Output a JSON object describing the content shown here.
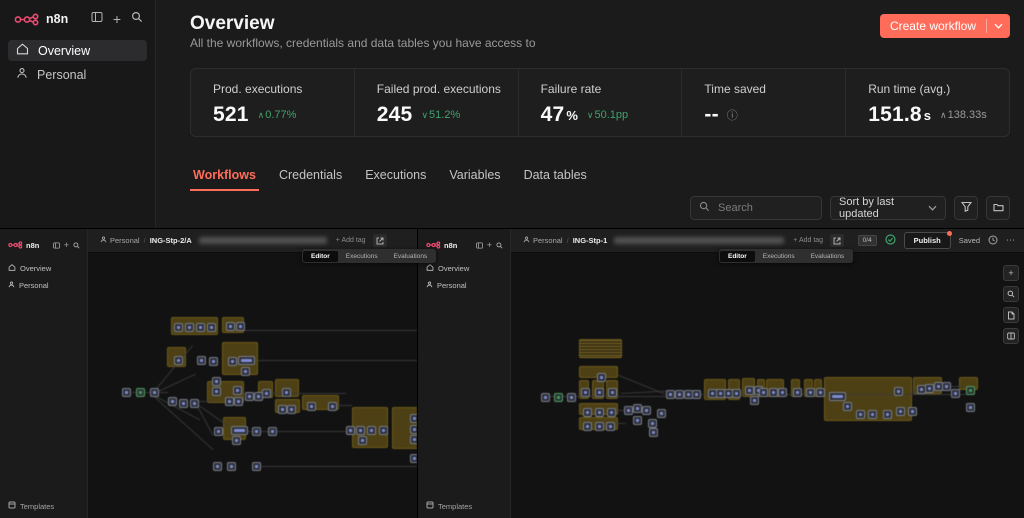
{
  "brand": {
    "name": "n8n"
  },
  "colors": {
    "accent": "#ff6d5a",
    "logo_pink": "#ea4b71",
    "positive_green": "#3fa36b",
    "sticky_olive": "#7d6616"
  },
  "icons": {
    "plus": "+",
    "dots": "⋯",
    "info": "ⓘ"
  },
  "main_sidebar": {
    "items": [
      {
        "label": "Overview",
        "icon": "home",
        "state": "active"
      },
      {
        "label": "Personal",
        "icon": "user",
        "state": ""
      }
    ]
  },
  "overview": {
    "title": "Overview",
    "subtitle": "All the workflows, credentials and data tables you have access to",
    "create_button": {
      "label": "Create workflow"
    },
    "stats": [
      {
        "label": "Prod. executions",
        "value": "521",
        "unit": "",
        "delta": {
          "arrow": "∧",
          "text": "0.77%",
          "tone": "tone-green"
        }
      },
      {
        "label": "Failed prod. executions",
        "value": "245",
        "unit": "",
        "delta": {
          "arrow": "∨",
          "text": "51.2%",
          "tone": "tone-green"
        }
      },
      {
        "label": "Failure rate",
        "value": "47",
        "unit": "%",
        "delta": {
          "arrow": "∨",
          "text": "50.1pp",
          "tone": "tone-green"
        }
      },
      {
        "label": "Time saved",
        "value": "--",
        "unit": ""
      },
      {
        "label": "Run time (avg.)",
        "value": "151.8",
        "unit": "s",
        "delta": {
          "arrow": "∧",
          "text": "138.33s",
          "tone": "tone-muted"
        }
      }
    ],
    "tabs": [
      {
        "label": "Workflows",
        "state": "active"
      },
      {
        "label": "Credentials",
        "state": ""
      },
      {
        "label": "Executions",
        "state": ""
      },
      {
        "label": "Variables",
        "state": ""
      },
      {
        "label": "Data tables",
        "state": ""
      }
    ],
    "filters": {
      "search_placeholder": "Search",
      "sort_label": "Sort by last updated"
    }
  },
  "left_editor": {
    "sidebar": {
      "items": [
        {
          "label": "Overview"
        },
        {
          "label": "Personal"
        }
      ],
      "bottom_item": "Templates"
    },
    "header": {
      "project": "Personal",
      "sep": "/",
      "workflow_name": "ING-Stp-2/A",
      "add_tag": "+ Add tag"
    },
    "tabs": [
      {
        "label": "Editor",
        "state": "active"
      },
      {
        "label": "Executions",
        "state": ""
      },
      {
        "label": "Evaluations",
        "state": ""
      }
    ],
    "canvas": {
      "stickies": [
        [
          83,
          64,
          47,
          18
        ],
        [
          134,
          64,
          22,
          16
        ],
        [
          79,
          94,
          19,
          20
        ],
        [
          134,
          89,
          36,
          33
        ],
        [
          119,
          128,
          37,
          22
        ],
        [
          170,
          128,
          15,
          17
        ],
        [
          187,
          126,
          24,
          18
        ],
        [
          187,
          146,
          25,
          14
        ],
        [
          214,
          142,
          37,
          15
        ],
        [
          135,
          164,
          23,
          23
        ],
        [
          264,
          154,
          36,
          41
        ],
        [
          304,
          154,
          26,
          42
        ]
      ],
      "nodes": [
        [
          34,
          135
        ],
        [
          48,
          135,
          "green"
        ],
        [
          62,
          135
        ],
        [
          86,
          70
        ],
        [
          97,
          70
        ],
        [
          108,
          70
        ],
        [
          119,
          70
        ],
        [
          138,
          69
        ],
        [
          148,
          69
        ],
        [
          86,
          103
        ],
        [
          109,
          103
        ],
        [
          121,
          104
        ],
        [
          140,
          104
        ],
        [
          150,
          103,
          "wide"
        ],
        [
          153,
          114
        ],
        [
          80,
          144
        ],
        [
          91,
          146
        ],
        [
          102,
          146
        ],
        [
          124,
          124
        ],
        [
          124,
          134
        ],
        [
          145,
          133
        ],
        [
          137,
          144
        ],
        [
          146,
          144
        ],
        [
          157,
          139
        ],
        [
          166,
          139
        ],
        [
          174,
          136
        ],
        [
          194,
          135
        ],
        [
          190,
          152
        ],
        [
          199,
          152
        ],
        [
          219,
          149
        ],
        [
          240,
          149
        ],
        [
          126,
          174
        ],
        [
          143,
          173,
          "wide"
        ],
        [
          144,
          183
        ],
        [
          164,
          174
        ],
        [
          180,
          174
        ],
        [
          258,
          173
        ],
        [
          268,
          173
        ],
        [
          279,
          173
        ],
        [
          291,
          173
        ],
        [
          270,
          183
        ],
        [
          322,
          161
        ],
        [
          322,
          172
        ],
        [
          322,
          182
        ],
        [
          322,
          201
        ],
        [
          125,
          209
        ],
        [
          139,
          209
        ],
        [
          164,
          209
        ]
      ],
      "lines": [
        [
          155,
          77,
          174,
          0
        ],
        [
          170,
          107,
          159,
          0
        ],
        [
          44,
          139,
          36,
          0
        ],
        [
          106,
          148,
          18,
          0
        ],
        [
          182,
          140,
          76,
          0
        ],
        [
          246,
          152,
          18,
          0
        ],
        [
          150,
          178,
          108,
          0
        ],
        [
          170,
          213,
          159,
          0
        ],
        [
          66,
          138,
          60,
          -50
        ],
        [
          66,
          140,
          46,
          -25
        ],
        [
          66,
          142,
          52,
          28
        ],
        [
          66,
          143,
          80,
          42
        ],
        [
          108,
          150,
          40,
          35
        ],
        [
          108,
          150,
          36,
          62
        ]
      ]
    }
  },
  "right_editor": {
    "sidebar": {
      "items": [
        {
          "label": "Overview"
        },
        {
          "label": "Personal"
        }
      ],
      "bottom_item": "Templates"
    },
    "header": {
      "project": "Personal",
      "sep": "/",
      "workflow_name": "ING-Stp-1",
      "add_tag": "+ Add tag"
    },
    "header_right": {
      "badge": "0/4",
      "publish": "Publish",
      "saved": "Saved"
    },
    "tabs": [
      {
        "label": "Editor",
        "state": "active"
      },
      {
        "label": "Executions",
        "state": ""
      },
      {
        "label": "Evaluations",
        "state": ""
      }
    ],
    "canvas": {
      "stickies": [
        [
          68,
          86,
          43,
          19,
          "lines"
        ],
        [
          68,
          113,
          39,
          12
        ],
        [
          68,
          127,
          10,
          19
        ],
        [
          81,
          127,
          12,
          19
        ],
        [
          95,
          127,
          12,
          19
        ],
        [
          68,
          150,
          39,
          12
        ],
        [
          68,
          164,
          39,
          13
        ],
        [
          193,
          126,
          22,
          21
        ],
        [
          217,
          126,
          12,
          21
        ],
        [
          231,
          125,
          13,
          19
        ],
        [
          246,
          126,
          8,
          18
        ],
        [
          255,
          126,
          18,
          18
        ],
        [
          280,
          126,
          9,
          18
        ],
        [
          293,
          126,
          9,
          18
        ],
        [
          303,
          126,
          8,
          18
        ],
        [
          313,
          124,
          88,
          44
        ],
        [
          402,
          124,
          29,
          17
        ],
        [
          448,
          124,
          19,
          13
        ]
      ],
      "nodes": [
        [
          30,
          140
        ],
        [
          43,
          140,
          "green"
        ],
        [
          56,
          140
        ],
        [
          86,
          120
        ],
        [
          70,
          135
        ],
        [
          84,
          135
        ],
        [
          97,
          135
        ],
        [
          72,
          155
        ],
        [
          84,
          155
        ],
        [
          96,
          155
        ],
        [
          72,
          169
        ],
        [
          84,
          169
        ],
        [
          95,
          169
        ],
        [
          113,
          153
        ],
        [
          122,
          151
        ],
        [
          131,
          153
        ],
        [
          122,
          163
        ],
        [
          137,
          166
        ],
        [
          146,
          156
        ],
        [
          138,
          175
        ],
        [
          155,
          137
        ],
        [
          164,
          137
        ],
        [
          173,
          137
        ],
        [
          181,
          137
        ],
        [
          197,
          136
        ],
        [
          205,
          136
        ],
        [
          213,
          136
        ],
        [
          221,
          136
        ],
        [
          234,
          133
        ],
        [
          243,
          133
        ],
        [
          239,
          143
        ],
        [
          248,
          135
        ],
        [
          258,
          135
        ],
        [
          267,
          135
        ],
        [
          282,
          135
        ],
        [
          295,
          135
        ],
        [
          305,
          135
        ],
        [
          318,
          139,
          "wide"
        ],
        [
          332,
          149
        ],
        [
          345,
          157
        ],
        [
          357,
          157
        ],
        [
          372,
          157
        ],
        [
          385,
          154
        ],
        [
          383,
          134
        ],
        [
          397,
          154
        ],
        [
          406,
          132
        ],
        [
          414,
          131
        ],
        [
          423,
          129
        ],
        [
          431,
          129
        ],
        [
          440,
          136
        ],
        [
          455,
          133,
          "green"
        ],
        [
          455,
          150
        ]
      ],
      "lines": [
        [
          38,
          143,
          120,
          0
        ],
        [
          108,
          122,
          50,
          22
        ],
        [
          160,
          141,
          300,
          0
        ],
        [
          105,
          157,
          12,
          0
        ],
        [
          105,
          170,
          10,
          0
        ],
        [
          436,
          133,
          16,
          0
        ],
        [
          400,
          140,
          30,
          -20
        ],
        [
          110,
          140,
          45,
          -3
        ]
      ]
    }
  }
}
